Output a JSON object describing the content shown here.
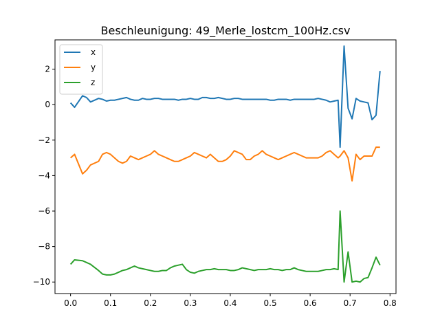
{
  "chart_data": {
    "type": "line",
    "title": "Beschleunigung: 49_Merle_lostcm_100Hz.csv",
    "xlabel": "",
    "ylabel": "",
    "xlim": [
      -0.039,
      0.815
    ],
    "ylim": [
      -10.65,
      3.65
    ],
    "xticks": [
      0.0,
      0.1,
      0.2,
      0.3,
      0.4,
      0.5,
      0.6,
      0.7,
      0.8
    ],
    "xtick_labels": [
      "0.0",
      "0.1",
      "0.2",
      "0.3",
      "0.4",
      "0.5",
      "0.6",
      "0.7",
      "0.8"
    ],
    "yticks": [
      -10,
      -8,
      -6,
      -4,
      -2,
      0,
      2
    ],
    "ytick_labels": [
      "−10",
      "−8",
      "−6",
      "−4",
      "−2",
      "0",
      "2"
    ],
    "grid": false,
    "legend_position": "top-left",
    "x": [
      0.0,
      0.01,
      0.03,
      0.04,
      0.05,
      0.07,
      0.08,
      0.09,
      0.1,
      0.11,
      0.12,
      0.13,
      0.14,
      0.15,
      0.16,
      0.17,
      0.18,
      0.19,
      0.2,
      0.21,
      0.22,
      0.23,
      0.24,
      0.25,
      0.26,
      0.27,
      0.28,
      0.29,
      0.3,
      0.31,
      0.32,
      0.33,
      0.34,
      0.35,
      0.36,
      0.37,
      0.38,
      0.39,
      0.4,
      0.41,
      0.42,
      0.43,
      0.44,
      0.45,
      0.46,
      0.47,
      0.48,
      0.49,
      0.5,
      0.51,
      0.52,
      0.53,
      0.54,
      0.55,
      0.56,
      0.57,
      0.58,
      0.59,
      0.6,
      0.61,
      0.62,
      0.63,
      0.64,
      0.65,
      0.66,
      0.67,
      0.675,
      0.685,
      0.695,
      0.705,
      0.715,
      0.725,
      0.735,
      0.745,
      0.755,
      0.765,
      0.775
    ],
    "series": [
      {
        "name": "x",
        "color": "#1f77b4",
        "values": [
          0.1,
          -0.15,
          0.5,
          0.4,
          0.15,
          0.35,
          0.3,
          0.2,
          0.25,
          0.25,
          0.3,
          0.35,
          0.4,
          0.3,
          0.25,
          0.25,
          0.35,
          0.3,
          0.3,
          0.35,
          0.35,
          0.3,
          0.3,
          0.3,
          0.3,
          0.25,
          0.3,
          0.3,
          0.35,
          0.3,
          0.3,
          0.4,
          0.4,
          0.35,
          0.35,
          0.4,
          0.35,
          0.3,
          0.3,
          0.35,
          0.35,
          0.3,
          0.3,
          0.3,
          0.3,
          0.3,
          0.3,
          0.3,
          0.25,
          0.25,
          0.3,
          0.3,
          0.3,
          0.25,
          0.3,
          0.3,
          0.3,
          0.3,
          0.3,
          0.3,
          0.35,
          0.3,
          0.25,
          0.15,
          0.2,
          0.25,
          -2.4,
          3.3,
          -0.2,
          -0.8,
          0.35,
          0.2,
          0.15,
          0.1,
          -0.85,
          -0.6,
          1.9
        ]
      },
      {
        "name": "y",
        "color": "#ff7f0e",
        "values": [
          -3.0,
          -2.8,
          -3.9,
          -3.7,
          -3.4,
          -3.2,
          -2.8,
          -2.7,
          -2.8,
          -3.0,
          -3.2,
          -3.3,
          -3.2,
          -2.9,
          -3.0,
          -3.1,
          -3.0,
          -2.9,
          -2.8,
          -2.6,
          -2.8,
          -2.9,
          -3.0,
          -3.1,
          -3.2,
          -3.2,
          -3.1,
          -3.0,
          -2.9,
          -2.7,
          -2.8,
          -2.9,
          -3.0,
          -2.8,
          -3.0,
          -3.2,
          -3.2,
          -3.1,
          -2.9,
          -2.6,
          -2.7,
          -2.8,
          -3.1,
          -3.1,
          -2.9,
          -2.8,
          -2.6,
          -2.8,
          -2.9,
          -3.0,
          -3.1,
          -3.0,
          -2.9,
          -2.8,
          -2.7,
          -2.8,
          -2.9,
          -3.0,
          -3.0,
          -3.0,
          -3.0,
          -2.9,
          -2.7,
          -2.6,
          -2.8,
          -3.0,
          -2.9,
          -2.6,
          -3.0,
          -4.3,
          -2.8,
          -3.1,
          -2.9,
          -2.9,
          -2.9,
          -2.4,
          -2.4
        ]
      },
      {
        "name": "z",
        "color": "#2ca02c",
        "values": [
          -9.0,
          -8.75,
          -8.8,
          -8.9,
          -9.0,
          -9.35,
          -9.55,
          -9.6,
          -9.6,
          -9.55,
          -9.45,
          -9.35,
          -9.3,
          -9.2,
          -9.1,
          -9.2,
          -9.25,
          -9.3,
          -9.35,
          -9.4,
          -9.4,
          -9.35,
          -9.35,
          -9.2,
          -9.1,
          -9.05,
          -9.0,
          -9.3,
          -9.45,
          -9.5,
          -9.4,
          -9.35,
          -9.3,
          -9.3,
          -9.25,
          -9.3,
          -9.3,
          -9.3,
          -9.35,
          -9.35,
          -9.3,
          -9.2,
          -9.25,
          -9.3,
          -9.35,
          -9.3,
          -9.3,
          -9.3,
          -9.25,
          -9.3,
          -9.3,
          -9.35,
          -9.3,
          -9.3,
          -9.2,
          -9.3,
          -9.35,
          -9.4,
          -9.4,
          -9.4,
          -9.4,
          -9.35,
          -9.3,
          -9.3,
          -9.25,
          -9.3,
          -6.0,
          -10.0,
          -8.3,
          -10.0,
          -9.95,
          -10.0,
          -9.8,
          -9.75,
          -9.2,
          -8.6,
          -9.05
        ]
      }
    ]
  }
}
